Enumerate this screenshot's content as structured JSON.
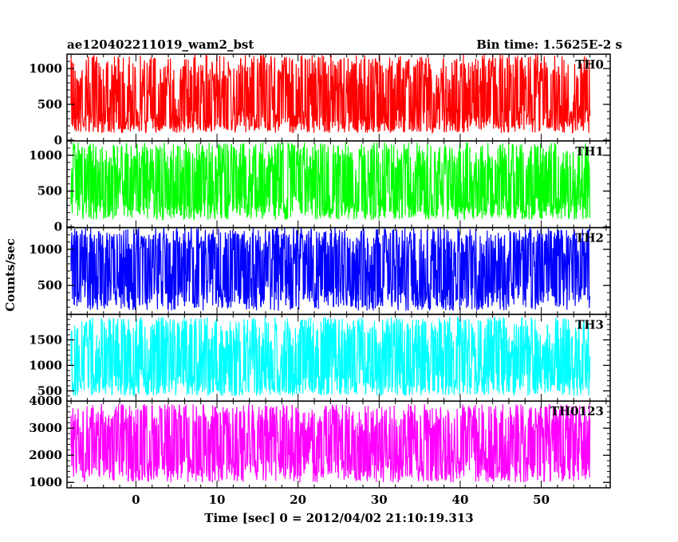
{
  "header": {
    "left_title": "ae120402211019_wam2_bst",
    "right_title": "Bin time: 1.5625E-2 s"
  },
  "chart_data": {
    "type": "line",
    "xlabel": "Time [sec] 0 = 2012/04/02 21:10:19.313",
    "ylabel": "Counts/sec",
    "xlim": [
      -8.5,
      58.5
    ],
    "x_ticks": [
      0,
      10,
      20,
      30,
      40,
      50
    ],
    "x_tick_labels": [
      "0",
      "10",
      "20",
      "30",
      "40",
      "50"
    ],
    "data_x_range": [
      -8,
      56
    ],
    "bin_time": 0.015625,
    "panels": [
      {
        "name": "TH0",
        "color": "#ff0000",
        "ylim": [
          -10,
          1200
        ],
        "y_ticks": [
          0,
          500,
          1000
        ],
        "y_tick_labels": [
          "0",
          "500",
          "1000"
        ],
        "mean": 500,
        "min_typical": 100,
        "max_typical": 1200
      },
      {
        "name": "TH1",
        "color": "#00ff00",
        "ylim": [
          -10,
          1200
        ],
        "y_ticks": [
          0,
          500,
          1000
        ],
        "y_tick_labels": [
          "0",
          "500",
          "1000"
        ],
        "mean": 520,
        "min_typical": 100,
        "max_typical": 1180
      },
      {
        "name": "TH2",
        "color": "#0000ff",
        "ylim": [
          100,
          1300
        ],
        "y_ticks": [
          500,
          1000
        ],
        "y_tick_labels": [
          "500",
          "1000"
        ],
        "mean": 700,
        "min_typical": 150,
        "max_typical": 1300
      },
      {
        "name": "TH3",
        "color": "#00ffff",
        "ylim": [
          300,
          2000
        ],
        "y_ticks": [
          500,
          1000,
          1500
        ],
        "y_tick_labels": [
          "500",
          "1000",
          "1500"
        ],
        "mean": 1000,
        "min_typical": 400,
        "max_typical": 1950
      },
      {
        "name": "TH0123",
        "color": "#ff00ff",
        "ylim": [
          800,
          4000
        ],
        "y_ticks": [
          1000,
          2000,
          3000,
          4000
        ],
        "y_tick_labels": [
          "1000",
          "2000",
          "3000",
          "4000"
        ],
        "mean": 2300,
        "min_typical": 1000,
        "max_typical": 3900
      }
    ]
  }
}
